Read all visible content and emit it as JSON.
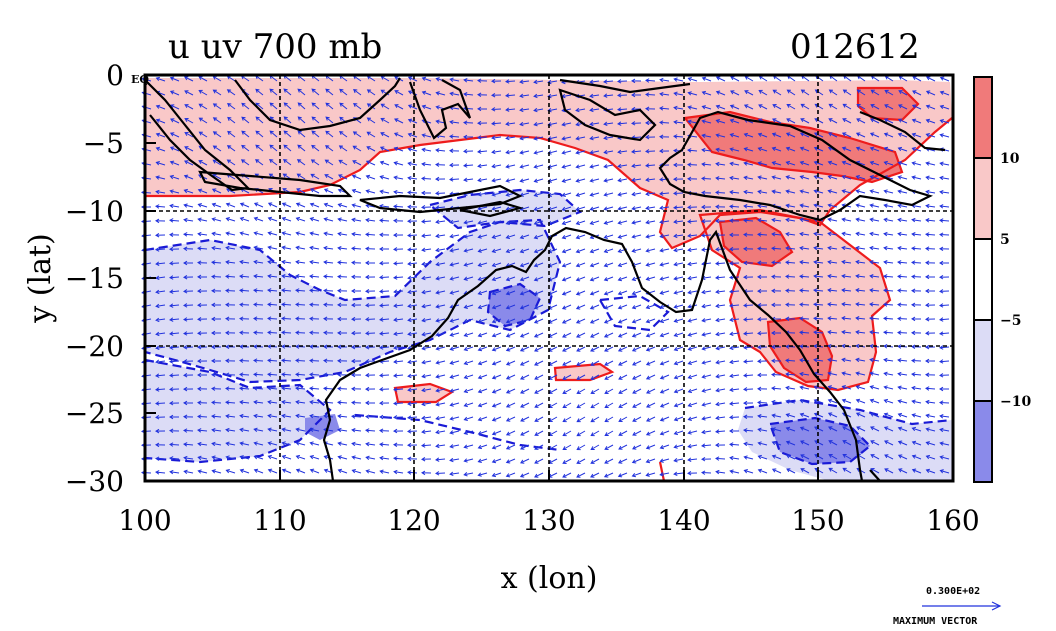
{
  "header": {
    "title": "u uv 700 mb",
    "timestamp": "012612"
  },
  "map": {
    "xlabel": "x (lon)",
    "ylabel": "y (lat)",
    "corner_label": "EQ",
    "x_ticks": [
      "100",
      "110",
      "120",
      "130",
      "140",
      "150",
      "160"
    ],
    "y_ticks": [
      "0",
      "−5",
      "−10",
      "−15",
      "−20",
      "−25",
      "−30"
    ],
    "xlim": [
      100,
      160
    ],
    "ylim": [
      -30,
      0
    ],
    "grid_lon": [
      110,
      120,
      130,
      140,
      150
    ],
    "grid_lat": [
      -10,
      -20
    ]
  },
  "colorbar": {
    "labels": [
      "10",
      "5",
      "−5",
      "−10"
    ],
    "colors": [
      "#f07a7a",
      "#f9c8c8",
      "#ffffff",
      "#dcdcf6",
      "#8a8aea"
    ]
  },
  "vector_legend": {
    "magnitude": "0.300E+02",
    "caption": "MAXIMUM VECTOR"
  },
  "colors": {
    "positive_contour": "#ee1c1c",
    "negative_contour": "#1a1ad6",
    "vector": "#2233dd",
    "coast": "#000000"
  }
}
